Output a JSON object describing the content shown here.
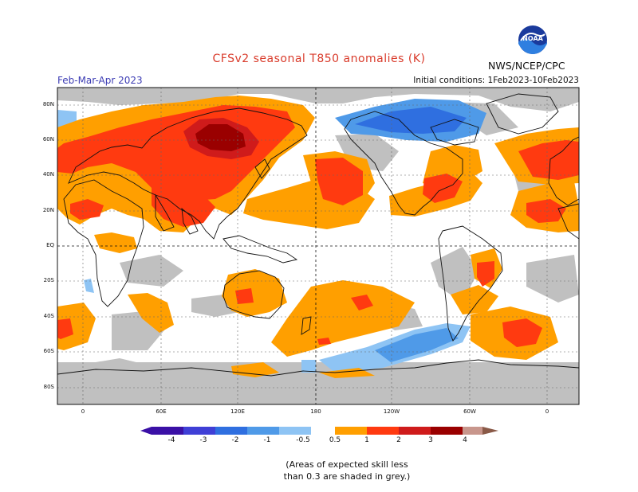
{
  "header": {
    "title": "CFSv2 seasonal T850 anomalies (K)",
    "season": "Feb-Mar-Apr 2023",
    "initial_conditions": "Initial conditions: 1Feb2023-10Feb2023",
    "agency": "NWS/NCEP/CPC",
    "logo_text": "NOAA",
    "logo_icon": "noaa-logo-icon"
  },
  "axes": {
    "lat_ticks": [
      "80N",
      "60N",
      "40N",
      "20N",
      "EQ",
      "20S",
      "40S",
      "60S",
      "80S"
    ],
    "lon_ticks": [
      "0",
      "60E",
      "120E",
      "180",
      "120W",
      "60W",
      "0"
    ]
  },
  "colorbar": {
    "labels": [
      "-4",
      "-3",
      "-2",
      "-1",
      "-0.5",
      "0.5",
      "1",
      "2",
      "3",
      "4"
    ],
    "colors": [
      "#3a10a6",
      "#3f3fd6",
      "#2f6fe0",
      "#4f9ae8",
      "#8ec4f4",
      "#ffffff",
      "#ff9f00",
      "#ff3a10",
      "#cf1b1b",
      "#9a0000",
      "#c8968c",
      "#8a5a48"
    ],
    "skill_mask_color": "#c0c0c0"
  },
  "note": {
    "line1": "(Areas of expected skill less",
    "line2": "than 0.3 are shaded in grey.)"
  }
}
